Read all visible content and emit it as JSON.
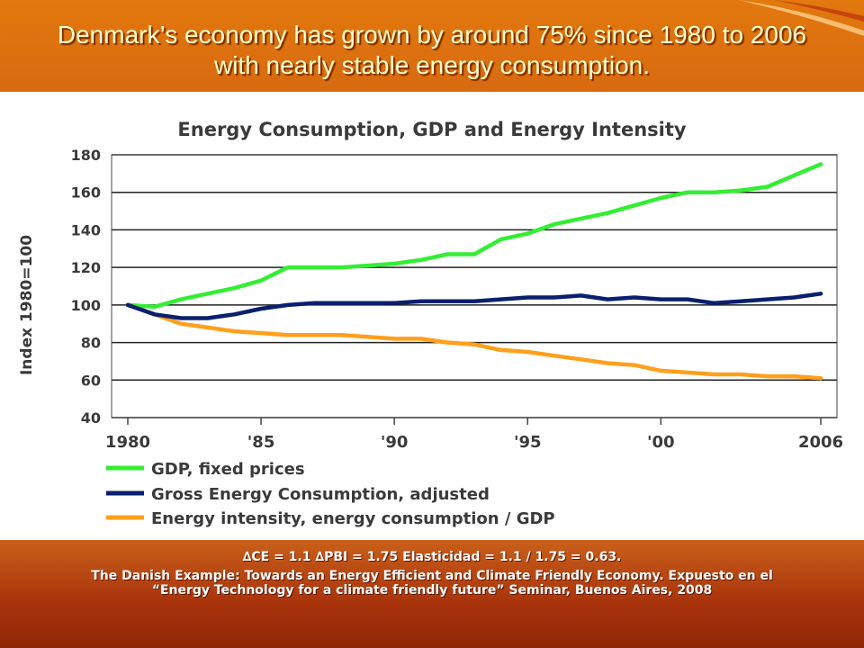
{
  "slide": {
    "title": "Denmark’s economy has grown by around 75%  since 1980 to 2006 with nearly stable energy consumption.",
    "note_line1": "∆CE = 1.1   ∆PBI = 1.75   Elasticidad = 1.1 / 1.75 = 0.63.",
    "note_line2": "The Danish Example: Towards an Energy Efficient and Climate Friendly Economy. Expuesto en el “Energy Technology for a climate friendly future” Seminar, Buenos Aires, 2008"
  },
  "chart_data": {
    "type": "line",
    "title": "Energy Consumption, GDP and Energy Intensity",
    "ylabel": "Index 1980=100",
    "xlabel": "",
    "ylim": [
      40,
      180
    ],
    "yticks": [
      40,
      60,
      80,
      100,
      120,
      140,
      160,
      180
    ],
    "xlim": [
      1980,
      2006
    ],
    "xticks": [
      {
        "value": 1980,
        "label": "1980"
      },
      {
        "value": 1985,
        "label": "'85"
      },
      {
        "value": 1990,
        "label": "'90"
      },
      {
        "value": 1995,
        "label": "'95"
      },
      {
        "value": 2000,
        "label": "'00"
      },
      {
        "value": 2006,
        "label": "2006"
      }
    ],
    "grid": "horizontal",
    "legend_position": "bottom",
    "x": [
      1980,
      1981,
      1982,
      1983,
      1984,
      1985,
      1986,
      1987,
      1988,
      1989,
      1990,
      1991,
      1992,
      1993,
      1994,
      1995,
      1996,
      1997,
      1998,
      1999,
      2000,
      2001,
      2002,
      2003,
      2004,
      2005,
      2006
    ],
    "series": [
      {
        "name": "GDP, fixed prices",
        "color": "#33ee33",
        "values": [
          100,
          99,
          103,
          106,
          109,
          113,
          120,
          120,
          120,
          121,
          122,
          124,
          127,
          127,
          135,
          138,
          143,
          146,
          149,
          153,
          157,
          160,
          160,
          161,
          163,
          169,
          175
        ]
      },
      {
        "name": "Gross Energy Consumption, adjusted",
        "color": "#0a1f6e",
        "values": [
          100,
          95,
          93,
          93,
          95,
          98,
          100,
          101,
          101,
          101,
          101,
          102,
          102,
          102,
          103,
          104,
          104,
          105,
          103,
          104,
          103,
          103,
          101,
          102,
          103,
          104,
          106
        ]
      },
      {
        "name": "Energy intensity, energy consumption / GDP",
        "color": "#ff9f1c",
        "values": [
          100,
          95,
          90,
          88,
          86,
          85,
          84,
          84,
          84,
          83,
          82,
          82,
          80,
          79,
          76,
          75,
          73,
          71,
          69,
          68,
          65,
          64,
          63,
          63,
          62,
          62,
          61
        ]
      }
    ]
  }
}
